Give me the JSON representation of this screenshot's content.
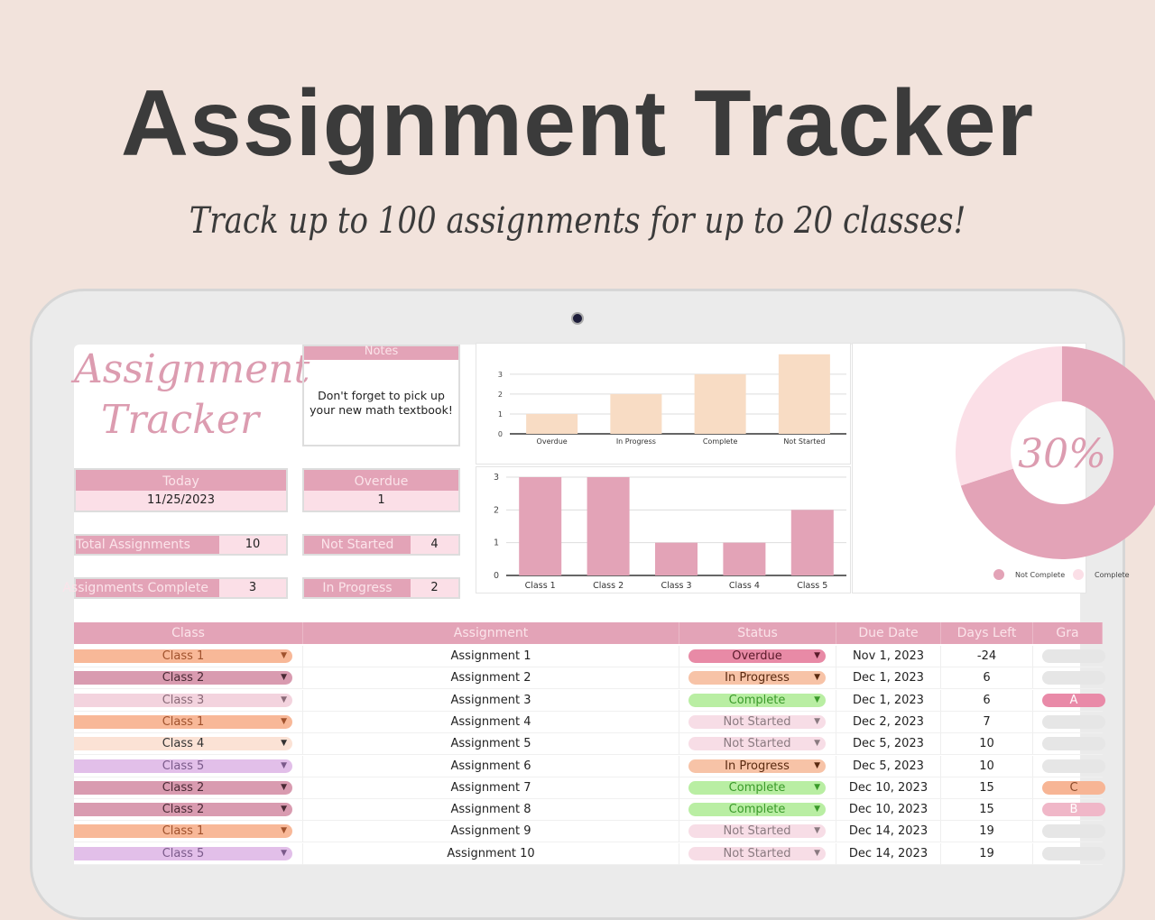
{
  "hero": {
    "title": "Assignment Tracker",
    "subtitle": "Track up to 100 assignments for up to 20 classes!"
  },
  "sheet": {
    "logo_line1": "Assignment",
    "logo_line2": "Tracker",
    "notes": {
      "label": "Notes",
      "text": "Don't forget to pick up your new math textbook!"
    },
    "today": {
      "label": "Today",
      "value": "11/25/2023"
    },
    "overdue": {
      "label": "Overdue",
      "value": "1"
    },
    "total": {
      "label": "Total Assignments",
      "value": "10"
    },
    "not_started": {
      "label": "Not Started",
      "value": "4"
    },
    "complete": {
      "label": "Assignments Complete",
      "value": "3"
    },
    "in_progress": {
      "label": "In Progress",
      "value": "2"
    }
  },
  "chart_data": [
    {
      "type": "bar",
      "categories": [
        "Overdue",
        "In Progress",
        "Complete",
        "Not Started"
      ],
      "values": [
        1,
        2,
        3,
        4
      ],
      "yticks": [
        "0",
        "1",
        "2",
        "3"
      ],
      "ylim": [
        0,
        3.9
      ],
      "color": "#f8dcc4",
      "grid": true
    },
    {
      "type": "bar",
      "categories": [
        "Class 1",
        "Class 2",
        "Class 3",
        "Class 4",
        "Class 5"
      ],
      "values": [
        3,
        3,
        1,
        1,
        2
      ],
      "yticks": [
        "0",
        "1",
        "2",
        "3"
      ],
      "ylim": [
        0,
        3
      ],
      "color": "#e3a3b7",
      "grid": true
    },
    {
      "type": "pie",
      "donut": true,
      "center_label": "30%",
      "categories": [
        "Not Complete",
        "Complete"
      ],
      "values": [
        70,
        30
      ],
      "colors": [
        "#e3a3b7",
        "#fbdfe7"
      ],
      "legend": "bottom"
    }
  ],
  "table": {
    "headers": [
      "Class",
      "Assignment",
      "Status",
      "Due Date",
      "Days Left",
      "Gra"
    ],
    "rows": [
      {
        "class": "Class 1",
        "assignment": "Assignment 1",
        "status": "Overdue",
        "due": "Nov 1, 2023",
        "days": "-24",
        "grade": ""
      },
      {
        "class": "Class 2",
        "assignment": "Assignment 2",
        "status": "In Progress",
        "due": "Dec 1, 2023",
        "days": "6",
        "grade": ""
      },
      {
        "class": "Class 3",
        "assignment": "Assignment 3",
        "status": "Complete",
        "due": "Dec 1, 2023",
        "days": "6",
        "grade": "A"
      },
      {
        "class": "Class 1",
        "assignment": "Assignment 4",
        "status": "Not Started",
        "due": "Dec 2, 2023",
        "days": "7",
        "grade": ""
      },
      {
        "class": "Class 4",
        "assignment": "Assignment 5",
        "status": "Not Started",
        "due": "Dec 5, 2023",
        "days": "10",
        "grade": ""
      },
      {
        "class": "Class 5",
        "assignment": "Assignment 6",
        "status": "In Progress",
        "due": "Dec 5, 2023",
        "days": "10",
        "grade": ""
      },
      {
        "class": "Class 2",
        "assignment": "Assignment 7",
        "status": "Complete",
        "due": "Dec 10, 2023",
        "days": "15",
        "grade": "C"
      },
      {
        "class": "Class 2",
        "assignment": "Assignment 8",
        "status": "Complete",
        "due": "Dec 10, 2023",
        "days": "15",
        "grade": "B"
      },
      {
        "class": "Class 1",
        "assignment": "Assignment 9",
        "status": "Not Started",
        "due": "Dec 14, 2023",
        "days": "19",
        "grade": ""
      },
      {
        "class": "Class 5",
        "assignment": "Assignment 10",
        "status": "Not Started",
        "due": "Dec 14, 2023",
        "days": "19",
        "grade": ""
      }
    ]
  },
  "colors": {
    "class": {
      "Class 1": [
        "#f8b898",
        "#a0522d"
      ],
      "Class 2": [
        "#d99bb0",
        "#4a2a35"
      ],
      "Class 3": [
        "#f3d3de",
        "#8a6a78"
      ],
      "Class 4": [
        "#fbe2d5",
        "#333333"
      ],
      "Class 5": [
        "#e2bfe9",
        "#7a5a8a"
      ]
    },
    "status": {
      "Overdue": [
        "#e88aa6",
        "#5a1a2a"
      ],
      "In Progress": [
        "#f7c3a7",
        "#5a2a10"
      ],
      "Complete": [
        "#b9eea3",
        "#3a9a2a"
      ],
      "Not Started": [
        "#f7dde6",
        "#8a7a80"
      ]
    },
    "grade": {
      "": "#e6e6e6",
      "A": "#e98aa8",
      "B": "#f0b7c8",
      "C": "#f7b595"
    }
  }
}
